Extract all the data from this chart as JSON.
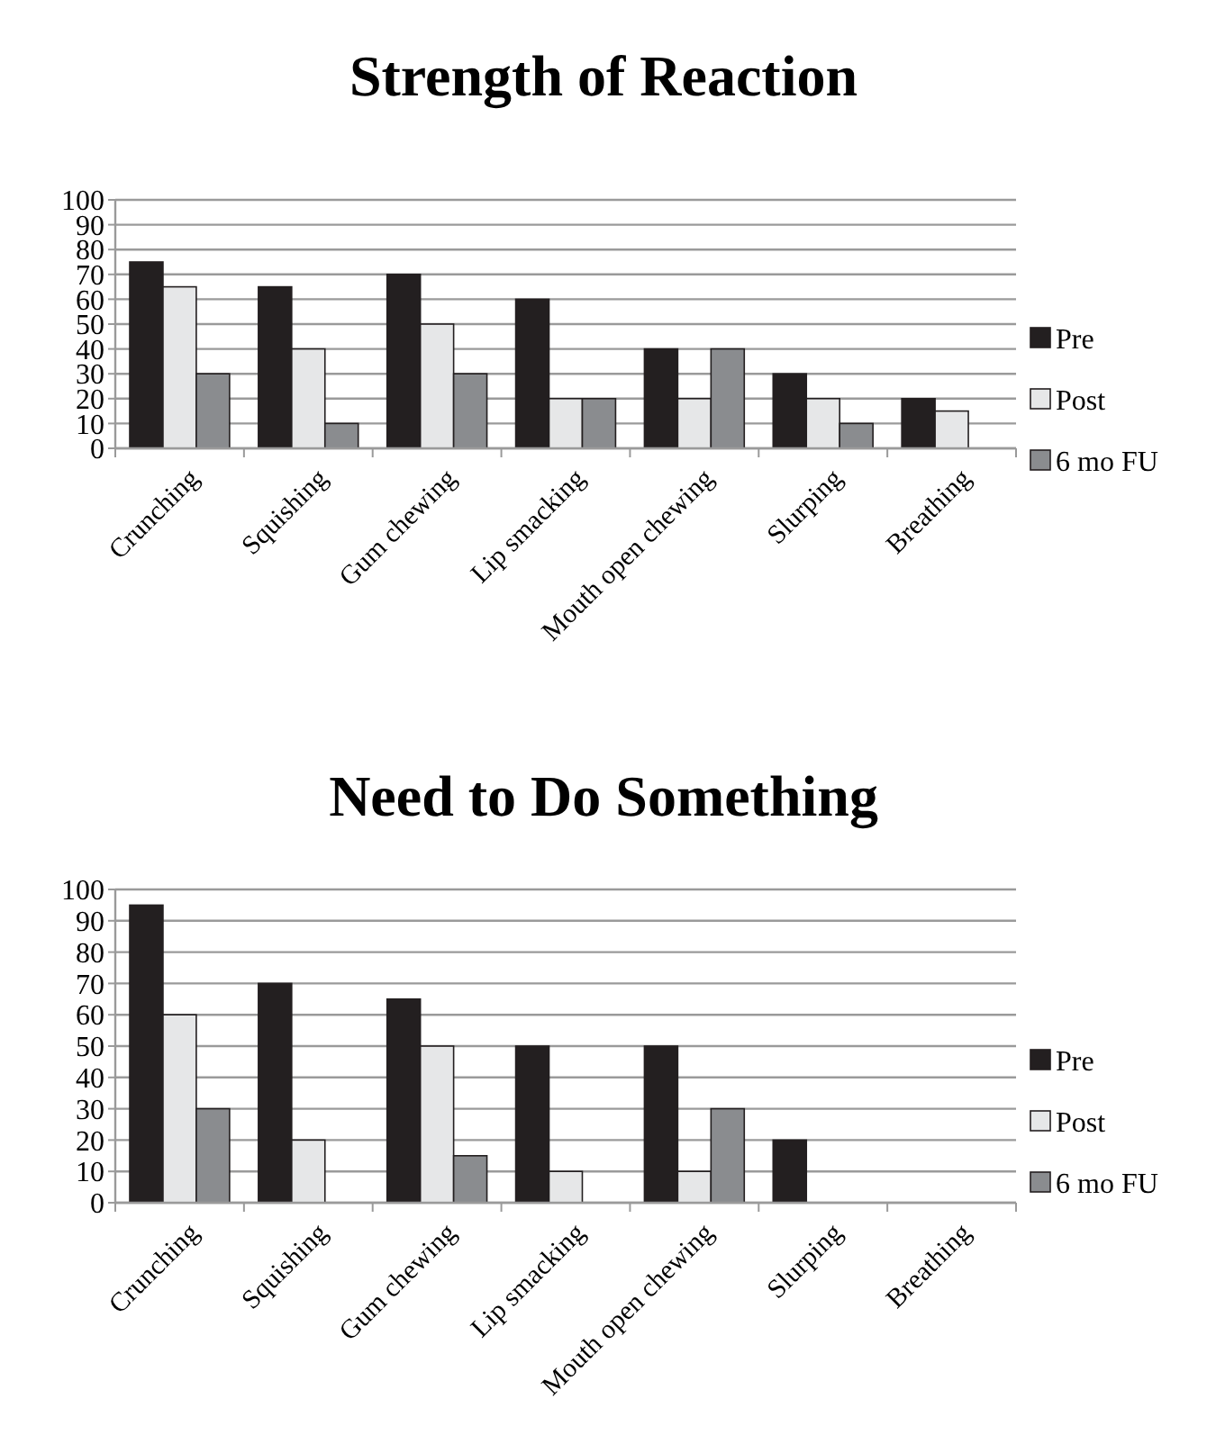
{
  "chart_data": [
    {
      "type": "bar",
      "title": "Strength of Reaction",
      "categories": [
        "Crunching",
        "Squishing",
        "Gum chewing",
        "Lip smacking",
        "Mouth open chewing",
        "Slurping",
        "Breathing"
      ],
      "series": [
        {
          "name": "Pre",
          "color": "#231f20",
          "values": [
            75,
            65,
            70,
            60,
            40,
            30,
            20
          ]
        },
        {
          "name": "Post",
          "color": "#e6e7e8",
          "values": [
            65,
            40,
            50,
            20,
            20,
            20,
            15
          ]
        },
        {
          "name": "6 mo FU",
          "color": "#8a8c8f",
          "values": [
            30,
            10,
            30,
            20,
            40,
            10,
            0
          ]
        }
      ],
      "ylim": [
        0,
        100
      ],
      "yticks": [
        0,
        10,
        20,
        30,
        40,
        50,
        60,
        70,
        80,
        90,
        100
      ],
      "grid": "y",
      "legend": "right"
    },
    {
      "type": "bar",
      "title": "Need to Do Something",
      "categories": [
        "Crunching",
        "Squishing",
        "Gum chewing",
        "Lip smacking",
        "Mouth open chewing",
        "Slurping",
        "Breathing"
      ],
      "series": [
        {
          "name": "Pre",
          "color": "#231f20",
          "values": [
            95,
            70,
            65,
            50,
            50,
            20,
            0
          ]
        },
        {
          "name": "Post",
          "color": "#e6e7e8",
          "values": [
            60,
            20,
            50,
            10,
            10,
            0,
            0
          ]
        },
        {
          "name": "6 mo FU",
          "color": "#8a8c8f",
          "values": [
            30,
            0,
            15,
            0,
            30,
            0,
            0
          ]
        }
      ],
      "ylim": [
        0,
        100
      ],
      "yticks": [
        0,
        10,
        20,
        30,
        40,
        50,
        60,
        70,
        80,
        90,
        100
      ],
      "grid": "y",
      "legend": "right"
    }
  ]
}
